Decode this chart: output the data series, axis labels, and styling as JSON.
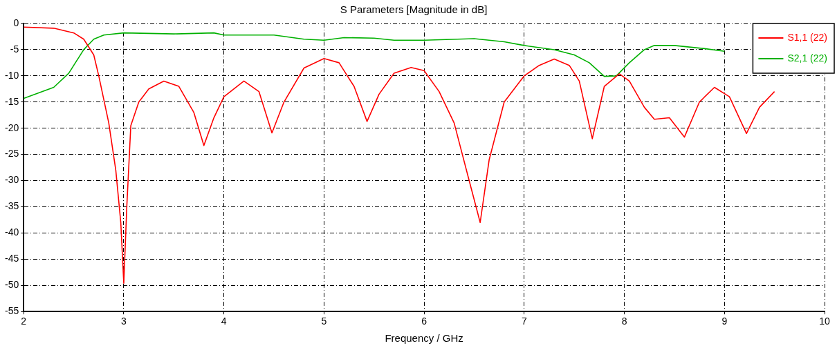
{
  "chart_data": {
    "type": "line",
    "title": "S Parameters [Magnitude in dB]",
    "xlabel": "Frequency / GHz",
    "xlim": [
      2,
      10
    ],
    "xticks": [
      2,
      3,
      4,
      5,
      6,
      7,
      8,
      9,
      10
    ],
    "ylim": [
      -55,
      0
    ],
    "yticks": [
      -55,
      -50,
      -45,
      -40,
      -35,
      -30,
      -25,
      -20,
      -15,
      -10,
      -5,
      0
    ],
    "grid": true,
    "legend": "top right",
    "marker": "none",
    "line_style": "solid",
    "series": [
      {
        "name": "S1,1 (22)",
        "color": "#ff0000",
        "x": [
          2,
          2.3,
          2.5,
          2.6,
          2.7,
          2.75,
          2.85,
          2.92,
          2.97,
          3,
          3.03,
          3.07,
          3.15,
          3.25,
          3.4,
          3.55,
          3.7,
          3.8,
          3.9,
          4.0,
          4.2,
          4.35,
          4.48,
          4.6,
          4.8,
          5.0,
          5.15,
          5.3,
          5.43,
          5.55,
          5.7,
          5.87,
          6.0,
          6.15,
          6.3,
          6.45,
          6.56,
          6.65,
          6.8,
          7.0,
          7.15,
          7.3,
          7.45,
          7.55,
          7.68,
          7.8,
          7.95,
          8.05,
          8.2,
          8.3,
          8.45,
          8.6,
          8.75,
          8.9,
          9.05,
          9.22,
          9.35,
          9.5
        ],
        "values": [
          -0.7,
          -0.9,
          -1.8,
          -3,
          -6,
          -10,
          -19,
          -28,
          -38,
          -49.6,
          -35,
          -19.5,
          -15,
          -12.5,
          -11,
          -12,
          -17,
          -23.3,
          -18,
          -14,
          -11,
          -13,
          -20.9,
          -15,
          -8.5,
          -6.7,
          -7.5,
          -12,
          -18.7,
          -13.5,
          -9.5,
          -8.4,
          -9,
          -13,
          -19,
          -30,
          -38,
          -26,
          -15,
          -10,
          -8,
          -6.8,
          -8,
          -11,
          -22,
          -12,
          -9.6,
          -11,
          -16,
          -18.3,
          -18,
          -21.7,
          -15,
          -12.2,
          -14,
          -21,
          -16,
          -13
        ]
      },
      {
        "name": "S2,1 (22)",
        "color": "#00b000",
        "x": [
          2,
          2.3,
          2.45,
          2.6,
          2.7,
          2.8,
          3.0,
          3.5,
          3.9,
          4.0,
          4.5,
          4.8,
          5.0,
          5.2,
          5.5,
          5.7,
          6.0,
          6.5,
          6.8,
          7.0,
          7.3,
          7.5,
          7.65,
          7.8,
          7.92,
          8.05,
          8.2,
          8.3,
          8.5,
          8.8,
          9.0
        ],
        "values": [
          -14.3,
          -12.2,
          -9.5,
          -5,
          -3,
          -2.2,
          -1.8,
          -2,
          -1.8,
          -2.2,
          -2.2,
          -3,
          -3.2,
          -2.7,
          -2.8,
          -3.2,
          -3.2,
          -2.9,
          -3.5,
          -4.2,
          -5,
          -6,
          -7.5,
          -10.1,
          -10,
          -7.5,
          -5,
          -4.2,
          -4.2,
          -4.8,
          -5.3
        ]
      }
    ]
  }
}
